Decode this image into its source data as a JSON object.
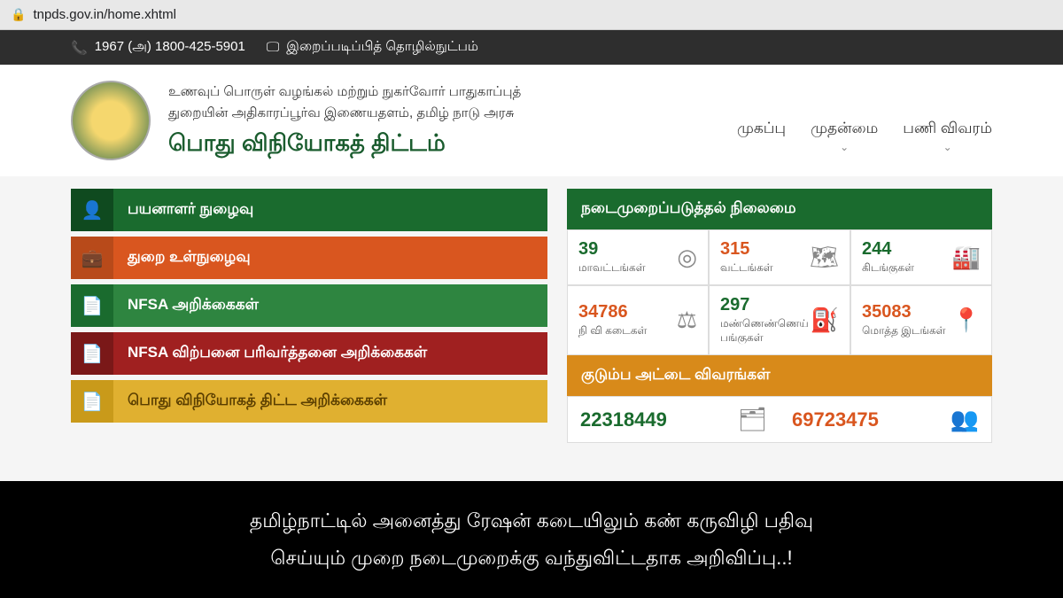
{
  "browser": {
    "url": "tnpds.gov.in/home.xhtml"
  },
  "topbar": {
    "phone": "1967 (அ) 1800-425-5901",
    "screenreader": "இறைப்படிப்பித் தொழில்நுட்பம்"
  },
  "header": {
    "dept1": "உணவுப் பொருள் வழங்கல் மற்றும் நுகர்வோர் பாதுகாப்புத்",
    "dept2": "துறையின் அதிகாரப்பூர்வ இணையதளம், தமிழ் நாடு அரசு",
    "title": "பொது விநியோகத் திட்டம்"
  },
  "nav": [
    {
      "label": "முகப்பு",
      "chev": false
    },
    {
      "label": "முதன்மை",
      "chev": true
    },
    {
      "label": "பணி விவரம்",
      "chev": true
    }
  ],
  "menu": [
    {
      "label": "பயனாளர் நுழைவு",
      "icon_bg": "#0f4a1f",
      "bar_bg": "#1a6b2e",
      "icon": "user-icon"
    },
    {
      "label": "துறை உள்நுழைவு",
      "icon_bg": "#b84a1a",
      "bar_bg": "#d9561f",
      "icon": "briefcase-icon"
    },
    {
      "label": "NFSA அறிக்கைகள்",
      "icon_bg": "#1a6b2e",
      "bar_bg": "#2e8540",
      "icon": "document-icon"
    },
    {
      "label": "NFSA விற்பனை பரிவர்த்தனை அறிக்கைகள்",
      "icon_bg": "#7a1818",
      "bar_bg": "#a02020",
      "icon": "document-icon"
    },
    {
      "label": "பொது விநியோகத் திட்ட அறிக்கைகள்",
      "icon_bg": "#c99a1a",
      "bar_bg": "#e0b030",
      "icon": "document-icon",
      "text_color": "#5a3e00"
    }
  ],
  "status_panel": {
    "title": "நடைமுறைப்படுத்தல் நிலைமை",
    "title_bg": "#1a6b2e",
    "stats": [
      {
        "num": "39",
        "lbl": "மாவட்டங்கள்",
        "color": "#1a6b2e",
        "icon": "pin-icon"
      },
      {
        "num": "315",
        "lbl": "வட்டங்கள்",
        "color": "#d9561f",
        "icon": "map-icon"
      },
      {
        "num": "244",
        "lbl": "கிடங்குகள்",
        "color": "#1a6b2e",
        "icon": "warehouse-icon"
      },
      {
        "num": "34786",
        "lbl": "நி வி கடைகள்",
        "color": "#d9561f",
        "icon": "scale-icon"
      },
      {
        "num": "297",
        "lbl": "மண்ணெண்ணெய் பங்குகள்",
        "color": "#1a6b2e",
        "icon": "fuel-icon"
      },
      {
        "num": "35083",
        "lbl": "மொத்த இடங்கள்",
        "color": "#d9561f",
        "icon": "location-icon"
      }
    ]
  },
  "card_panel": {
    "title": "குடும்ப அட்டை விவரங்கள்",
    "title_bg": "#d88a1a",
    "cells": [
      {
        "num": "22318449",
        "color": "#1a6b2e",
        "icon": "card-icon"
      },
      {
        "num": "69723475",
        "color": "#d9561f",
        "icon": "people-icon"
      }
    ]
  },
  "overlay": {
    "line1": "தமிழ்நாட்டில் அனைத்து ரேஷன் கடையிலும் கண் கருவிழி பதிவு",
    "line2": "செய்யும் முறை நடைமுறைக்கு வந்துவிட்டதாக அறிவிப்பு..!"
  }
}
